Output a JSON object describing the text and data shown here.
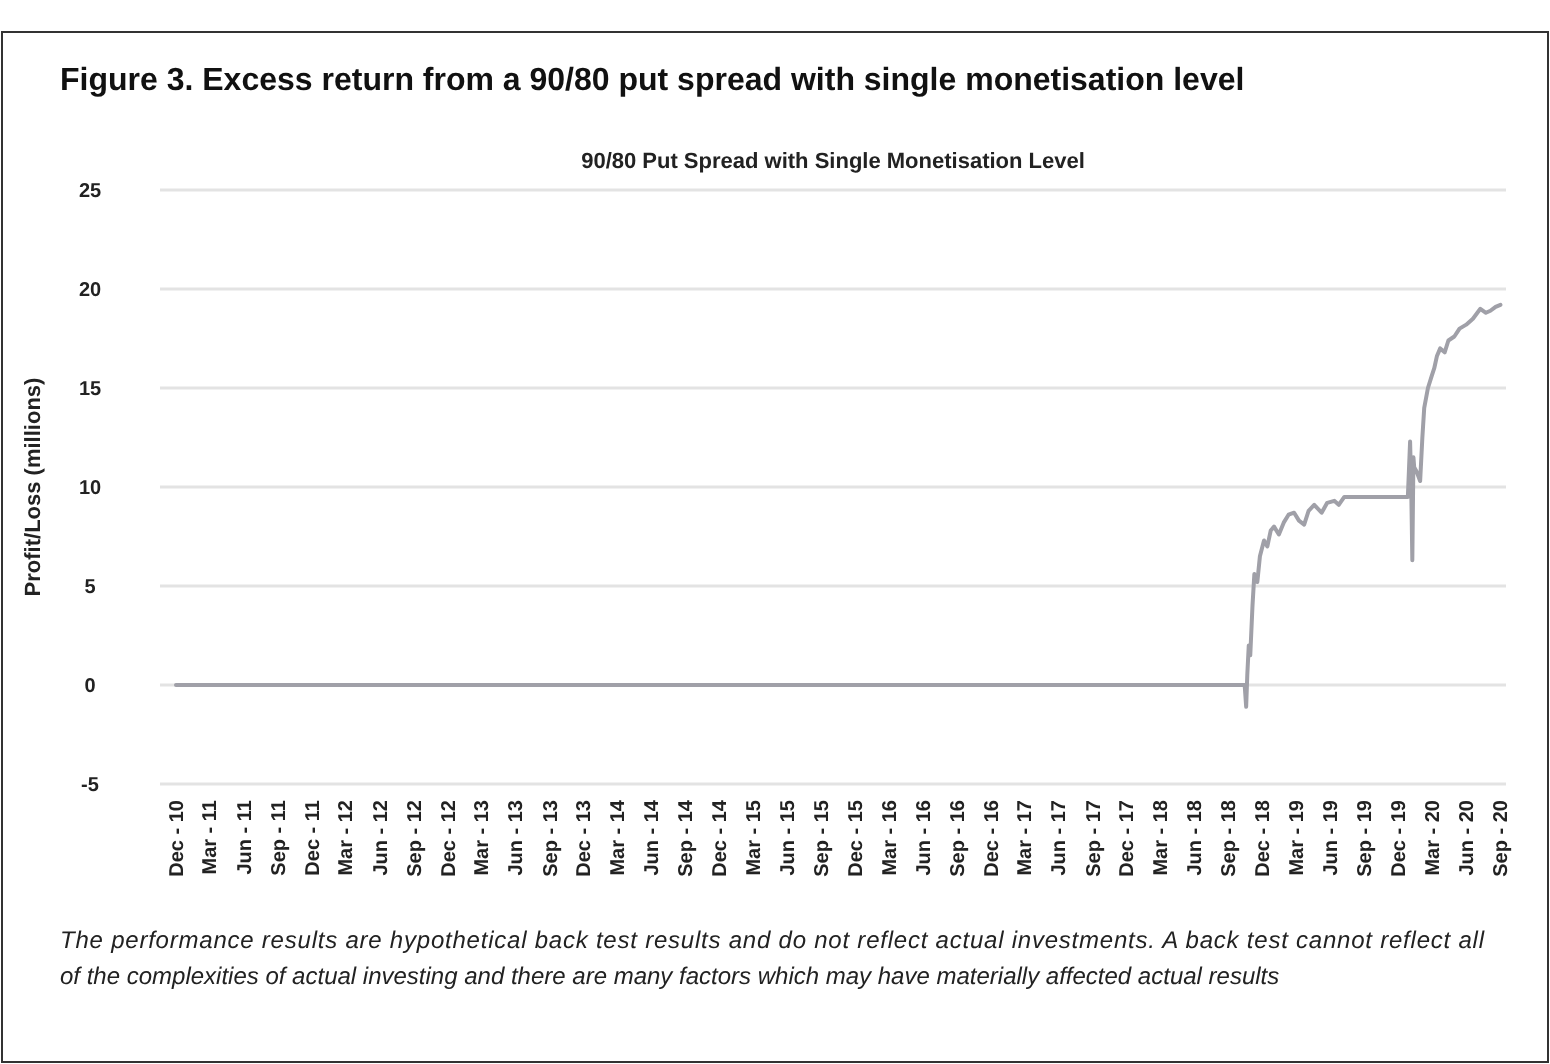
{
  "chart_data": {
    "type": "line",
    "title": "Figure 3. Excess return from a 90/80 put spread with single monetisation level",
    "subtitle": "90/80 Put Spread with Single Monetisation Level",
    "ylabel": "Profit/Loss (millions)",
    "annotations": [
      "The performance results are hypothetical back test results and do not reflect actual investments. A back test cannot reflect all of the complexities of actual investing and there are many factors which may have materially affected actual results"
    ],
    "series": [
      {
        "color": "#a0a0a8",
        "x": [
          "2010-12-01",
          "2018-10-15",
          "2018-10-19",
          "2018-10-22",
          "2018-10-26",
          "2018-10-30",
          "2018-11-05",
          "2018-11-10",
          "2018-11-18",
          "2018-11-25",
          "2018-12-06",
          "2018-12-15",
          "2018-12-24",
          "2019-01-02",
          "2019-01-15",
          "2019-01-28",
          "2019-02-10",
          "2019-02-25",
          "2019-03-10",
          "2019-03-24",
          "2019-04-05",
          "2019-04-20",
          "2019-05-10",
          "2019-05-25",
          "2019-06-13",
          "2019-06-25",
          "2019-07-10",
          "2019-08-01",
          "2019-12-23",
          "2019-12-28",
          "2020-01-03",
          "2020-01-06",
          "2020-01-09",
          "2020-01-12",
          "2020-01-14",
          "2020-01-20",
          "2020-01-30",
          "2020-02-05",
          "2020-02-10",
          "2020-02-20",
          "2020-03-01",
          "2020-03-08",
          "2020-03-15",
          "2020-03-24",
          "2020-04-05",
          "2020-04-15",
          "2020-05-01",
          "2020-05-15",
          "2020-06-02",
          "2020-06-20",
          "2020-07-10",
          "2020-07-25",
          "2020-08-06",
          "2020-08-20",
          "2020-09-02"
        ],
        "values": [
          0,
          0,
          -1.1,
          0.5,
          2,
          1.5,
          4,
          5.6,
          5.2,
          6.5,
          7.3,
          7,
          7.8,
          8,
          7.6,
          8.2,
          8.6,
          8.7,
          8.3,
          8.1,
          8.8,
          9.1,
          8.7,
          9.2,
          9.3,
          9.1,
          9.5,
          9.5,
          9.5,
          9.5,
          12.3,
          10,
          6.3,
          11.5,
          11,
          10.8,
          10.3,
          12.5,
          14,
          15,
          15.6,
          16,
          16.6,
          17,
          16.8,
          17.4,
          17.6,
          18,
          18.2,
          18.5,
          19,
          18.8,
          18.9,
          19.1,
          19.2
        ]
      }
    ],
    "xlim": [
      "2010-10-19",
      "2020-09-17"
    ],
    "xticks": [
      {
        "value": "2010-12-01",
        "label": "Dec - 10"
      },
      {
        "value": "2011-03-01",
        "label": "Mar - 11"
      },
      {
        "value": "2011-06-01",
        "label": "Jun - 11"
      },
      {
        "value": "2011-09-01",
        "label": "Sep - 11"
      },
      {
        "value": "2011-12-01",
        "label": "Dec - 11"
      },
      {
        "value": "2012-03-01",
        "label": "Mar - 12"
      },
      {
        "value": "2012-06-01",
        "label": "Jun - 12"
      },
      {
        "value": "2012-09-01",
        "label": "Sep - 12"
      },
      {
        "value": "2012-12-01",
        "label": "Dec - 12"
      },
      {
        "value": "2013-03-01",
        "label": "Mar - 13"
      },
      {
        "value": "2013-06-01",
        "label": "Jun - 13"
      },
      {
        "value": "2013-09-01",
        "label": "Sep - 13"
      },
      {
        "value": "2013-12-01",
        "label": "Dec - 13"
      },
      {
        "value": "2014-03-01",
        "label": "Mar - 14"
      },
      {
        "value": "2014-06-01",
        "label": "Jun - 14"
      },
      {
        "value": "2014-09-01",
        "label": "Sep - 14"
      },
      {
        "value": "2014-12-01",
        "label": "Dec - 14"
      },
      {
        "value": "2015-03-01",
        "label": "Mar - 15"
      },
      {
        "value": "2015-06-01",
        "label": "Jun - 15"
      },
      {
        "value": "2015-09-01",
        "label": "Sep - 15"
      },
      {
        "value": "2015-12-01",
        "label": "Dec - 15"
      },
      {
        "value": "2016-03-01",
        "label": "Mar - 16"
      },
      {
        "value": "2016-06-01",
        "label": "Jun - 16"
      },
      {
        "value": "2016-09-01",
        "label": "Sep - 16"
      },
      {
        "value": "2016-12-01",
        "label": "Dec - 16"
      },
      {
        "value": "2017-03-01",
        "label": "Mar - 17"
      },
      {
        "value": "2017-06-01",
        "label": "Jun - 17"
      },
      {
        "value": "2017-09-01",
        "label": "Sep - 17"
      },
      {
        "value": "2017-12-01",
        "label": "Dec - 17"
      },
      {
        "value": "2018-03-01",
        "label": "Mar - 18"
      },
      {
        "value": "2018-06-01",
        "label": "Jun - 18"
      },
      {
        "value": "2018-09-01",
        "label": "Sep - 18"
      },
      {
        "value": "2018-12-01",
        "label": "Dec - 18"
      },
      {
        "value": "2019-03-01",
        "label": "Mar - 19"
      },
      {
        "value": "2019-06-01",
        "label": "Jun - 19"
      },
      {
        "value": "2019-09-01",
        "label": "Sep - 19"
      },
      {
        "value": "2019-12-01",
        "label": "Dec - 19"
      },
      {
        "value": "2020-03-01",
        "label": "Mar - 20"
      },
      {
        "value": "2020-06-01",
        "label": "Jun - 20"
      },
      {
        "value": "2020-09-01",
        "label": "Sep - 20"
      }
    ],
    "ylim": [
      -5,
      25
    ],
    "yticks": [
      -5,
      0,
      5,
      10,
      15,
      20,
      25
    ],
    "grid": "y",
    "line_style": "solid",
    "marker": "none"
  }
}
